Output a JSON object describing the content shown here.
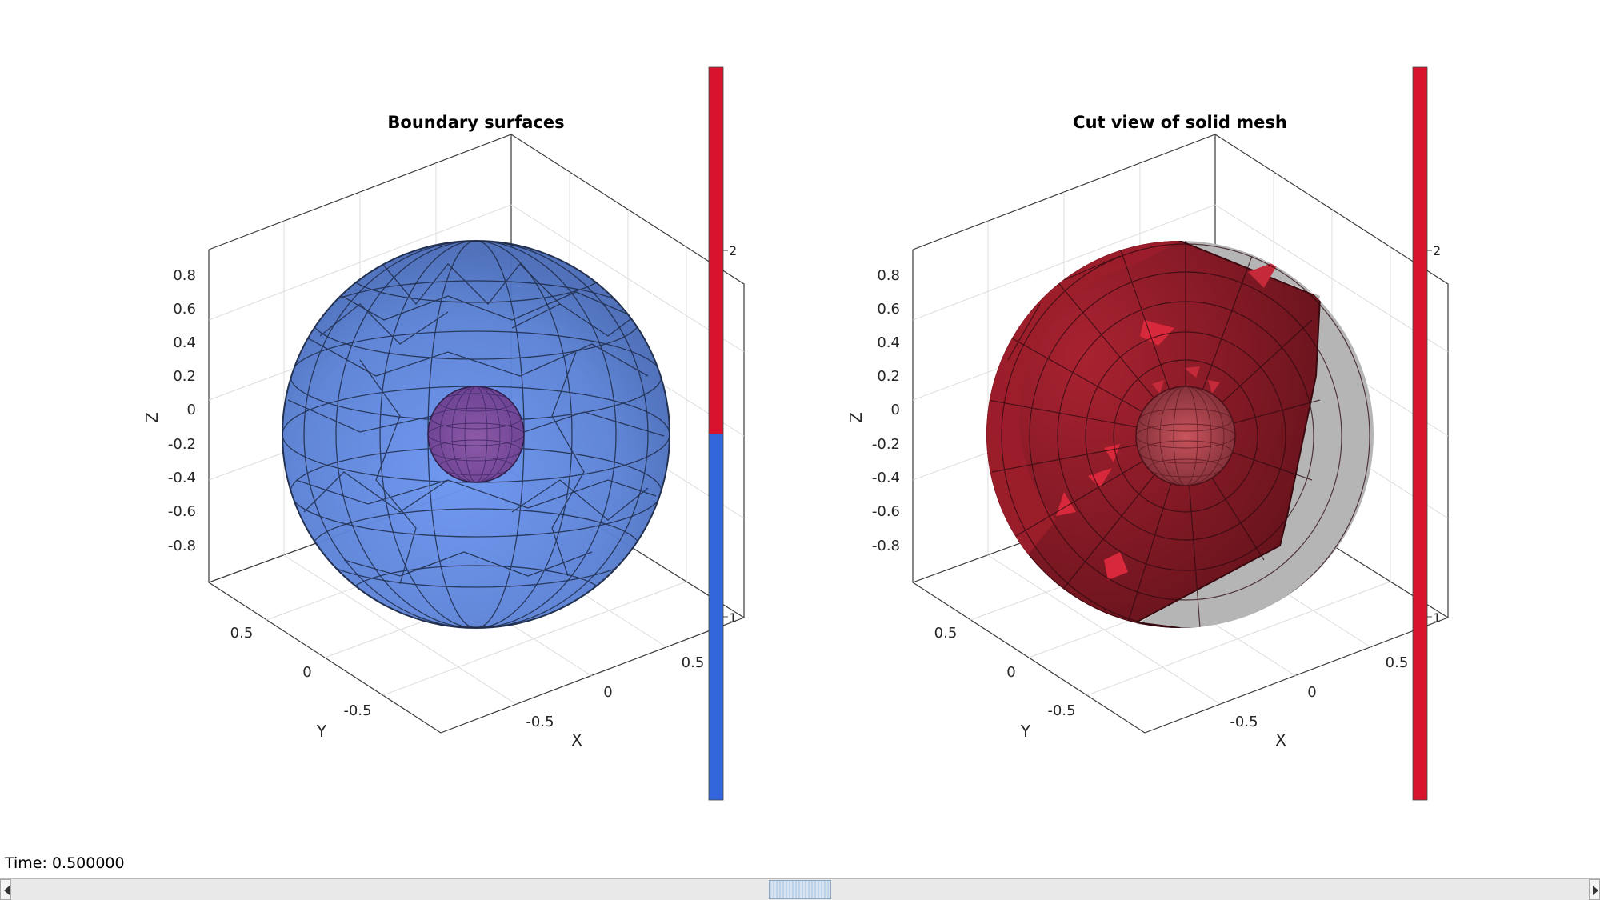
{
  "figure": {
    "left_axes": {
      "title": "Boundary surfaces",
      "xlabel": "X",
      "ylabel": "Y",
      "zlabel": "Z",
      "x_ticks": [
        "-0.5",
        "0",
        "0.5"
      ],
      "y_ticks": [
        "0.5",
        "0",
        "-0.5"
      ],
      "z_ticks": [
        "0.8",
        "0.6",
        "0.4",
        "0.2",
        "0",
        "-0.2",
        "-0.4",
        "-0.6",
        "-0.8"
      ],
      "colorbar_ticks": [
        "2",
        "1"
      ],
      "colorbar_colors": [
        "#d8132e",
        "#3366dd"
      ]
    },
    "right_axes": {
      "title": "Cut view of solid mesh",
      "xlabel": "X",
      "ylabel": "Y",
      "zlabel": "Z",
      "x_ticks": [
        "-0.5",
        "0",
        "0.5"
      ],
      "y_ticks": [
        "0.5",
        "0",
        "-0.5"
      ],
      "z_ticks": [
        "0.8",
        "0.6",
        "0.4",
        "0.2",
        "0",
        "-0.2",
        "-0.4",
        "-0.6",
        "-0.8"
      ],
      "colorbar_ticks": [
        "2",
        "1"
      ],
      "colorbar_colors": [
        "#d8132e"
      ]
    },
    "colors": {
      "outer_sphere": "#5b82d6",
      "inner_sphere": "#7a4f9e",
      "solid_mesh": "#7a1a22",
      "solid_mesh_light": "#c42a3a",
      "ghost": "#b5b5b5"
    }
  },
  "status": {
    "time_text": "Time: 0.500000"
  },
  "slider": {
    "value": 0.5
  }
}
